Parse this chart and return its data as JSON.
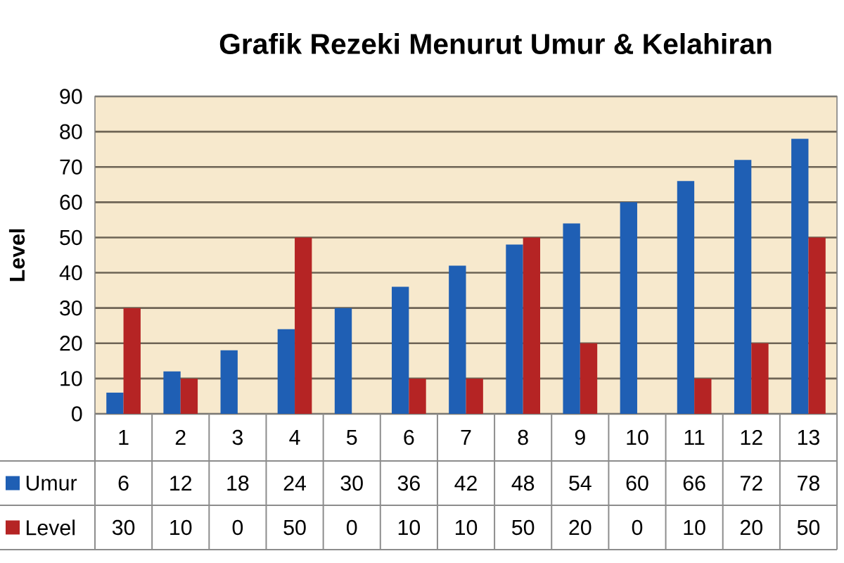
{
  "chart_data": {
    "type": "bar",
    "title": "Grafik Rezeki Menurut Umur & Kelahiran",
    "ylabel": "Level",
    "categories": [
      "1",
      "2",
      "3",
      "4",
      "5",
      "6",
      "7",
      "8",
      "9",
      "10",
      "11",
      "12",
      "13"
    ],
    "series": [
      {
        "name": "Umur",
        "color": "#1f5fb4",
        "values": [
          6,
          12,
          18,
          24,
          30,
          36,
          42,
          48,
          54,
          60,
          66,
          72,
          78
        ]
      },
      {
        "name": "Level",
        "color": "#b52424",
        "values": [
          30,
          10,
          0,
          50,
          0,
          10,
          10,
          50,
          20,
          0,
          10,
          20,
          50
        ]
      }
    ],
    "ylim": [
      0,
      90
    ],
    "yticks": [
      0,
      10,
      20,
      30,
      40,
      50,
      60,
      70,
      80,
      90
    ],
    "grid": "y",
    "legend": "bottom",
    "data_labels": true
  }
}
